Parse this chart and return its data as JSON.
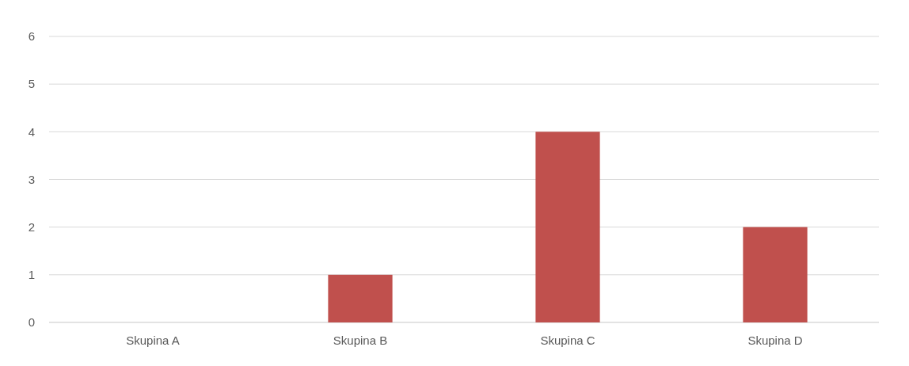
{
  "chart_data": {
    "type": "bar",
    "categories": [
      "Skupina A",
      "Skupina B",
      "Skupina C",
      "Skupina D"
    ],
    "values": [
      0,
      1,
      4,
      2
    ],
    "color": "#c0504d",
    "ylim": [
      0,
      6
    ],
    "yticks": [
      0,
      1,
      2,
      3,
      4,
      5,
      6
    ],
    "grid": "y"
  }
}
